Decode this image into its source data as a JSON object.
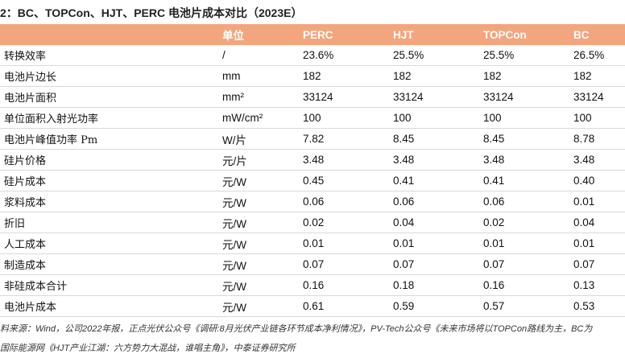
{
  "title": "2：BC、TOPCon、HJT、PERC 电池片成本对比（2023E）",
  "table": {
    "header": [
      "",
      "单位",
      "PERC",
      "HJT",
      "TOPCon",
      "BC"
    ],
    "rows": [
      [
        "转换效率",
        "/",
        "23.6%",
        "25.5%",
        "25.5%",
        "26.5%"
      ],
      [
        "电池片边长",
        "mm",
        "182",
        "182",
        "182",
        "182"
      ],
      [
        "电池片面积",
        "mm²",
        "33124",
        "33124",
        "33124",
        "33124"
      ],
      [
        "单位面积入射光功率",
        "mW/cm²",
        "100",
        "100",
        "100",
        "100"
      ],
      [
        "电池片峰值功率 Pm",
        "W/片",
        "7.82",
        "8.45",
        "8.45",
        "8.78"
      ],
      [
        "硅片价格",
        "元/片",
        "3.48",
        "3.48",
        "3.48",
        "3.48"
      ],
      [
        "硅片成本",
        "元/W",
        "0.45",
        "0.41",
        "0.41",
        "0.40"
      ],
      [
        "浆料成本",
        "元/W",
        "0.06",
        "0.06",
        "0.06",
        "0.01"
      ],
      [
        "折旧",
        "元/W",
        "0.02",
        "0.04",
        "0.02",
        "0.04"
      ],
      [
        "人工成本",
        "元/W",
        "0.01",
        "0.01",
        "0.01",
        "0.01"
      ],
      [
        "制造成本",
        "元/W",
        "0.07",
        "0.07",
        "0.07",
        "0.07"
      ],
      [
        "非硅成本合计",
        "元/W",
        "0.16",
        "0.18",
        "0.16",
        "0.13"
      ],
      [
        "电池片成本",
        "元/W",
        "0.61",
        "0.59",
        "0.57",
        "0.53"
      ]
    ]
  },
  "source": [
    "料来源：Wind，公司2022年报，正点光伏公众号《调研:8月光伏产业链各环节成本净利情况》，PV-Tech公众号《未来市场将以TOPCon路线为主，BC为",
    "国际能源网《HJT产业江湖：六方势力大混战，谁唱主角》，中泰证券研究所"
  ]
}
